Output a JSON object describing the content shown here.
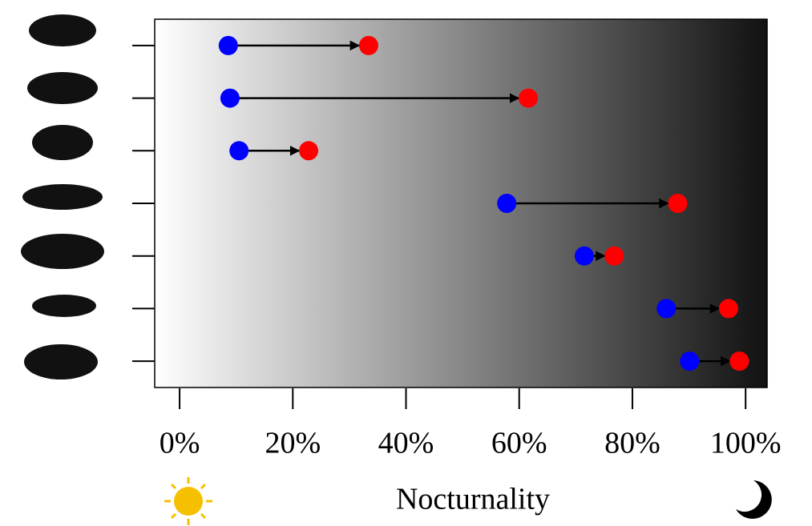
{
  "chart_data": {
    "type": "dumbbell",
    "x_label": "Nocturnality",
    "xlim": [
      -4.4,
      103.8
    ],
    "xticks": [
      {
        "value": 0,
        "label": "0%"
      },
      {
        "value": 20,
        "label": "20%"
      },
      {
        "value": 40,
        "label": "40%"
      },
      {
        "value": 60,
        "label": "60%"
      },
      {
        "value": 80,
        "label": "80%"
      },
      {
        "value": 100,
        "label": "100%"
      }
    ],
    "series": [
      {
        "color": "#0000ff",
        "values": [
          8.6,
          8.9,
          10.5,
          57.8,
          71.5,
          86.0,
          90.1
        ]
      },
      {
        "color": "#ff0000",
        "values": [
          33.4,
          61.6,
          22.8,
          88.0,
          76.8,
          97.0,
          98.9
        ]
      }
    ]
  }
}
